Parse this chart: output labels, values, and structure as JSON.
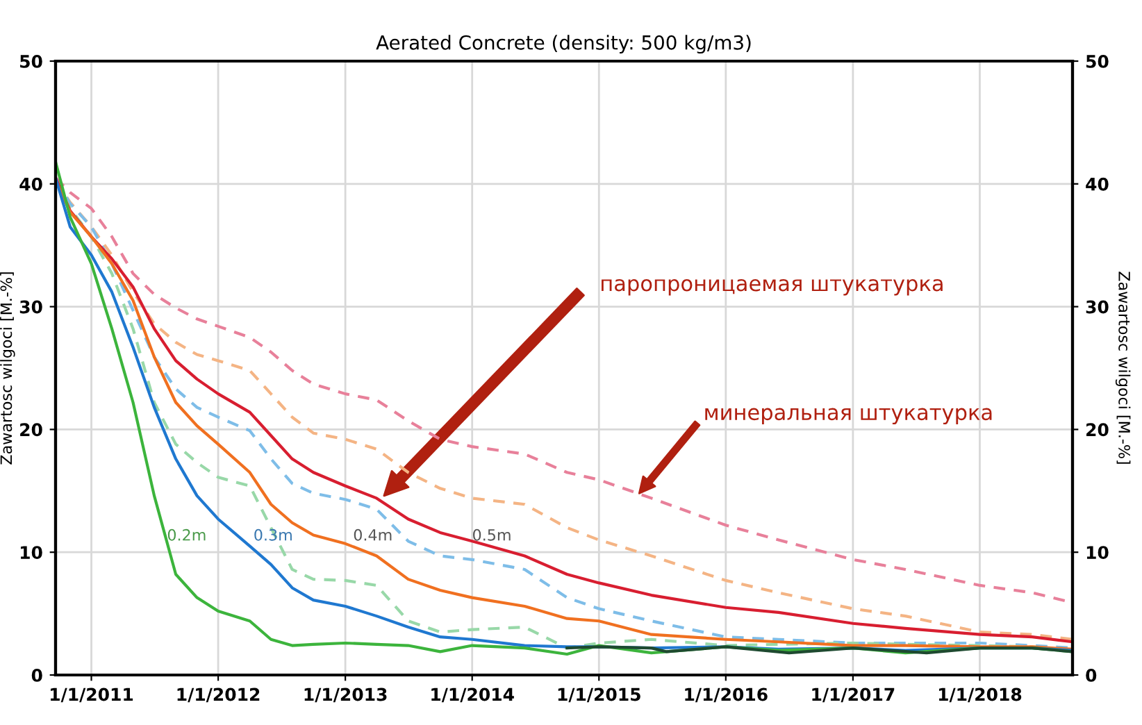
{
  "chart_data": {
    "type": "line",
    "title": "Aerated Concrete (density: 500 kg/m3)",
    "ylabel": "Zawartosc wilgoci [M.-%]",
    "y2label": "Zawartosc wilgoci [M.-%]",
    "xlim": [
      "2010-09-20",
      "2018-09-25"
    ],
    "xticks": [
      {
        "value": "2011-01-01",
        "label": "1/1/2011"
      },
      {
        "value": "2012-01-01",
        "label": "1/1/2012"
      },
      {
        "value": "2013-01-01",
        "label": "1/1/2013"
      },
      {
        "value": "2014-01-01",
        "label": "1/1/2014"
      },
      {
        "value": "2015-01-01",
        "label": "1/1/2015"
      },
      {
        "value": "2016-01-01",
        "label": "1/1/2016"
      },
      {
        "value": "2017-01-01",
        "label": "1/1/2017"
      },
      {
        "value": "2018-01-01",
        "label": "1/1/2018"
      }
    ],
    "ylim": [
      0,
      50
    ],
    "yticks": [
      0,
      10,
      20,
      30,
      40,
      50
    ],
    "y2lim": [
      0,
      50
    ],
    "y2ticks": [
      0,
      10,
      20,
      30,
      40,
      50
    ],
    "grid": true,
    "marker": "none",
    "x": [
      "2010-09-20",
      "2010-11-01",
      "2011-01-01",
      "2011-03-01",
      "2011-05-01",
      "2011-07-01",
      "2011-09-01",
      "2011-11-01",
      "2012-01-01",
      "2012-04-01",
      "2012-06-01",
      "2012-08-01",
      "2012-10-01",
      "2013-01-01",
      "2013-04-01",
      "2013-07-01",
      "2013-10-01",
      "2014-01-01",
      "2014-06-01",
      "2014-10-01",
      "2015-01-01",
      "2015-06-01",
      "2016-01-01",
      "2016-06-01",
      "2017-01-01",
      "2017-06-01",
      "2018-01-01",
      "2018-06-01",
      "2018-09-25"
    ],
    "series": [
      {
        "color": "#e8809a",
        "line_style": "dashed",
        "values": [
          40.5,
          39.3,
          38.0,
          35.7,
          32.7,
          31.0,
          29.9,
          29.0,
          28.4,
          27.5,
          26.3,
          24.8,
          23.7,
          22.9,
          22.4,
          20.7,
          19.2,
          18.6,
          18.0,
          16.5,
          15.9,
          14.4,
          12.2,
          11.0,
          9.4,
          8.6,
          7.3,
          6.7,
          5.9
        ]
      },
      {
        "color": "#f4b484",
        "line_style": "dashed",
        "values": [
          40.3,
          38.5,
          36.5,
          34.2,
          31.2,
          28.6,
          27.1,
          26.1,
          25.6,
          24.8,
          22.9,
          21.0,
          19.7,
          19.2,
          18.4,
          16.5,
          15.2,
          14.4,
          13.9,
          12.0,
          11.0,
          9.7,
          7.7,
          6.7,
          5.4,
          4.8,
          3.5,
          3.3,
          2.9
        ]
      },
      {
        "color": "#7ebde8",
        "line_style": "dashed",
        "values": [
          40.3,
          38.4,
          36.5,
          33.5,
          29.7,
          25.9,
          23.3,
          21.8,
          21.0,
          19.9,
          17.6,
          15.6,
          14.8,
          14.3,
          13.5,
          10.9,
          9.7,
          9.4,
          8.6,
          6.3,
          5.4,
          4.4,
          3.1,
          2.9,
          2.6,
          2.6,
          2.6,
          2.4,
          2.2
        ]
      },
      {
        "color": "#98d8a8",
        "line_style": "dashed",
        "values": [
          40.3,
          38.0,
          35.7,
          32.7,
          28.2,
          22.2,
          18.8,
          17.3,
          16.1,
          15.4,
          12.0,
          8.6,
          7.8,
          7.7,
          7.3,
          4.4,
          3.5,
          3.7,
          3.9,
          2.2,
          2.6,
          2.9,
          2.4,
          2.5,
          2.6,
          2.5,
          2.4,
          2.3,
          2.0
        ]
      },
      {
        "color": "#d81e30",
        "line_style": "solid",
        "values": [
          40.5,
          37.8,
          35.7,
          33.9,
          31.6,
          28.2,
          25.6,
          24.1,
          22.9,
          21.4,
          19.5,
          17.6,
          16.5,
          15.4,
          14.4,
          12.7,
          11.6,
          10.9,
          9.7,
          8.2,
          7.5,
          6.5,
          5.5,
          5.1,
          4.2,
          3.8,
          3.3,
          3.1,
          2.7
        ]
      },
      {
        "color": "#f07020",
        "line_style": "solid",
        "values": [
          40.3,
          37.7,
          35.7,
          33.5,
          30.5,
          25.9,
          22.2,
          20.3,
          18.8,
          16.5,
          13.9,
          12.4,
          11.4,
          10.7,
          9.7,
          7.8,
          6.9,
          6.3,
          5.6,
          4.6,
          4.4,
          3.3,
          2.9,
          2.7,
          2.4,
          2.4,
          2.3,
          2.3,
          2.1
        ]
      },
      {
        "color": "#1f78d0",
        "line_style": "solid",
        "values": [
          40.5,
          36.5,
          34.2,
          31.2,
          26.7,
          21.8,
          17.6,
          14.6,
          12.7,
          10.5,
          9.0,
          7.1,
          6.1,
          5.6,
          4.8,
          3.9,
          3.1,
          2.9,
          2.4,
          2.3,
          2.3,
          2.2,
          2.3,
          2.1,
          2.2,
          2.0,
          2.2,
          2.2,
          2.0
        ]
      },
      {
        "color": "#3cb43c",
        "line_style": "solid",
        "values": [
          41.8,
          37.3,
          33.5,
          28.2,
          22.2,
          14.6,
          8.2,
          6.3,
          5.2,
          4.4,
          2.9,
          2.4,
          2.5,
          2.6,
          2.5,
          2.4,
          1.9,
          2.4,
          2.2,
          1.7,
          2.4,
          1.8,
          2.3,
          2.0,
          2.2,
          1.8,
          2.2,
          2.2,
          1.9
        ]
      },
      {
        "color": "#1e4a30",
        "line_style": "solid",
        "x": [
          "2014-10-01",
          "2015-01-01",
          "2015-06-01",
          "2015-07-15",
          "2016-01-01",
          "2016-07-01",
          "2017-01-01",
          "2017-08-01",
          "2018-01-01",
          "2018-06-01",
          "2018-09-25"
        ],
        "values": [
          2.2,
          2.3,
          2.2,
          1.9,
          2.3,
          1.8,
          2.2,
          1.8,
          2.2,
          2.2,
          1.9
        ]
      }
    ],
    "annotations": [
      "0.2m",
      "0.3m",
      "0.4m",
      "0.5m",
      "паропроницаемая штукатурка",
      "минеральная штукатурка"
    ]
  }
}
